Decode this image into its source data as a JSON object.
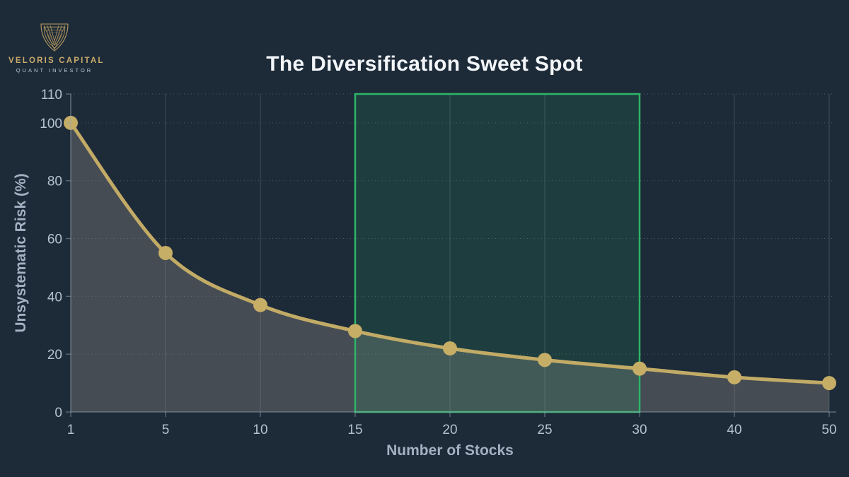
{
  "logo": {
    "company": "VELORIS CAPITAL",
    "tagline": "QUANT INVESTOR"
  },
  "header": {
    "title": "The Diversification Sweet Spot"
  },
  "chart_data": {
    "type": "line",
    "title": "The Diversification Sweet Spot",
    "categories": [
      "1",
      "5",
      "10",
      "15",
      "20",
      "25",
      "30",
      "40",
      "50"
    ],
    "values": [
      100,
      55,
      37,
      28,
      22,
      18,
      15,
      12,
      10
    ],
    "xlabel": "Number of Stocks",
    "ylabel": "Unsystematic Risk (%)",
    "y_ticks": [
      0,
      20,
      40,
      60,
      80,
      100,
      110
    ],
    "ylim": [
      0,
      110
    ],
    "grid": true,
    "legend_position": "none",
    "marker_style": "circle",
    "area_fill": true,
    "highlight_region": {
      "x_start": "15",
      "x_end": "30"
    },
    "colors": {
      "background": "#1d2a38",
      "line": "#c2ab66",
      "marker": "#c6ae66",
      "area": "rgba(162,155,149,0.30)",
      "highlight_border": "#2db468",
      "highlight_fill": "rgba(46,180,106,0.14)",
      "grid_h": "rgba(190,200,210,0.30)",
      "grid_v": "rgba(150,170,160,0.25)",
      "axis": "rgba(151,166,184,0.50)",
      "tick_text": "#b5c1cf",
      "axis_title_text": "#a4b1c2",
      "title_text": "#f3f6f9",
      "logo_gold": "#b89d62"
    }
  }
}
